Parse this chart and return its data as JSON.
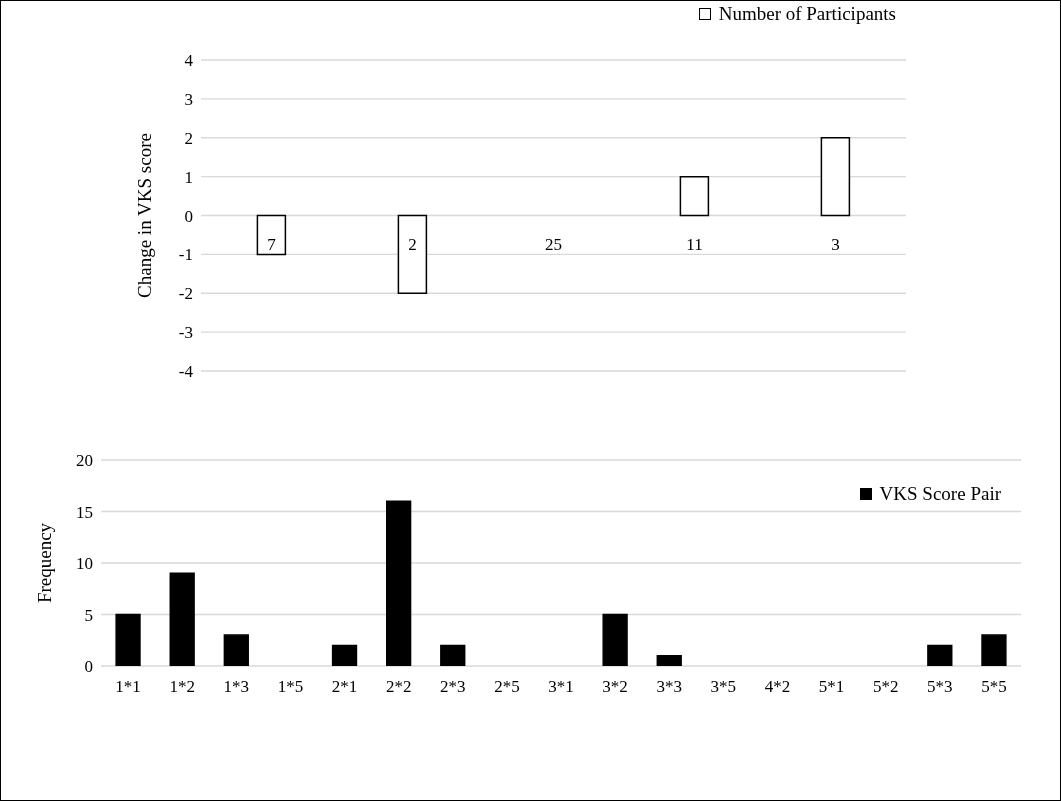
{
  "chart_data": [
    {
      "type": "bar",
      "ylabel": "Change in VKS score",
      "categories": [
        "7",
        "2",
        "25",
        "11",
        "3"
      ],
      "series": [
        {
          "name": "Number of Participants",
          "color": "#ffffff",
          "values": [
            -1,
            -2,
            0,
            1,
            2
          ]
        }
      ],
      "ylim": [
        -4,
        4
      ],
      "yticks": [
        -4,
        -3,
        -2,
        -1,
        0,
        1,
        2,
        3,
        4
      ],
      "grid": "y",
      "legend": "top right"
    },
    {
      "type": "bar",
      "ylabel": "Frequency",
      "categories": [
        "1*1",
        "1*2",
        "1*3",
        "1*5",
        "2*1",
        "2*2",
        "2*3",
        "2*5",
        "3*1",
        "3*2",
        "3*3",
        "3*5",
        "4*2",
        "5*1",
        "5*2",
        "5*3",
        "5*5"
      ],
      "series": [
        {
          "name": "VKS Score Pair",
          "color": "#000000",
          "values": [
            5,
            9,
            3,
            0,
            2,
            16,
            2,
            0,
            0,
            5,
            1,
            0,
            0,
            0,
            0,
            2,
            3
          ]
        }
      ],
      "ylim": [
        0,
        20
      ],
      "yticks": [
        0,
        5,
        10,
        15,
        20
      ],
      "grid": "y",
      "legend": "top right"
    }
  ]
}
